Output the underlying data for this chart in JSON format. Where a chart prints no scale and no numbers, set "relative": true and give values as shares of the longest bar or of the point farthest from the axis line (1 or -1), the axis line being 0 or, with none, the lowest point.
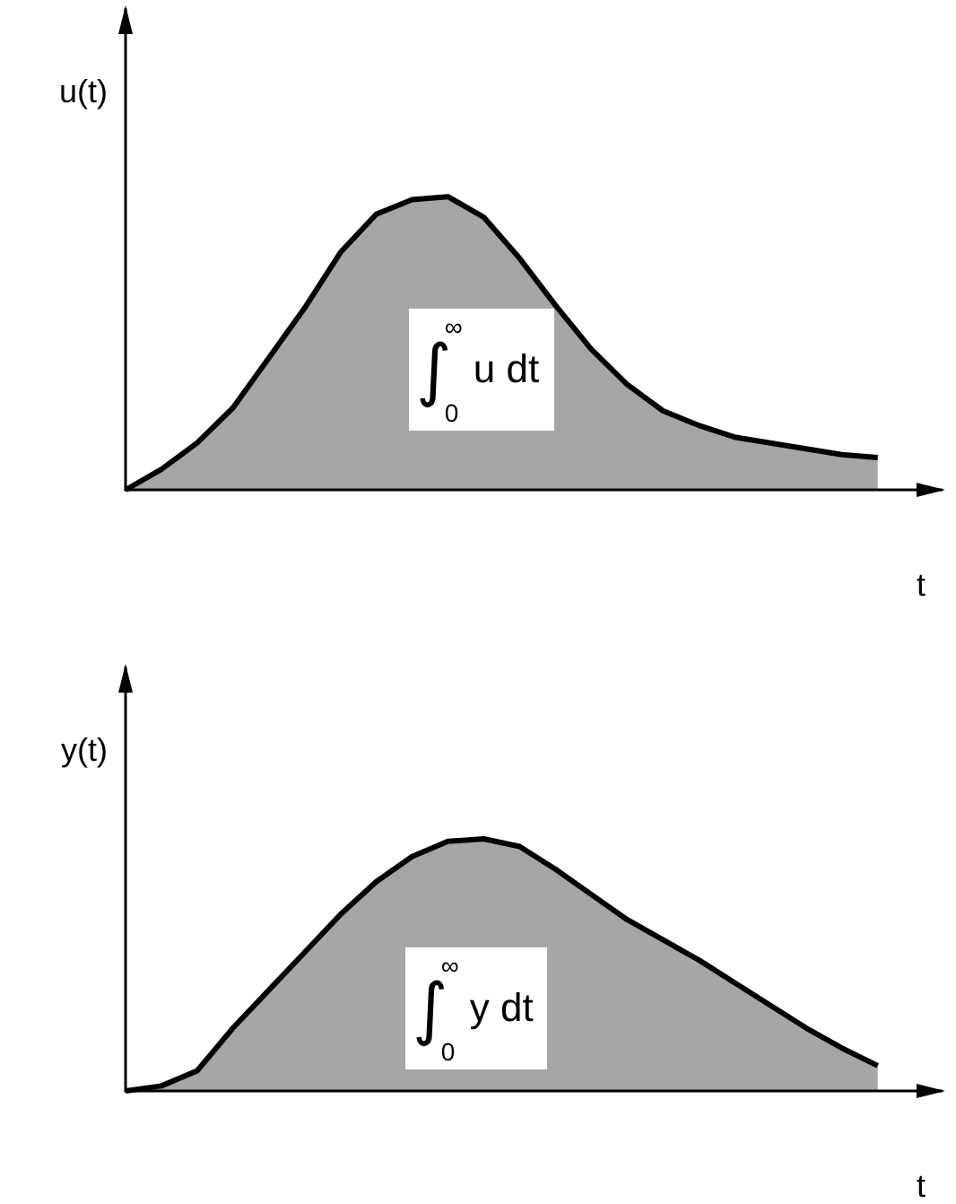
{
  "chart_data": [
    {
      "type": "area",
      "relative": true,
      "xlabel": "t",
      "ylabel": "u(t)",
      "categories": [
        null,
        null,
        null,
        null,
        null,
        null,
        null,
        null,
        null,
        null,
        null,
        null,
        null,
        null,
        null,
        null,
        null,
        null,
        null,
        null,
        null,
        null
      ],
      "series": [
        {
          "color": "#000000",
          "values": [
            0,
            0.07,
            0.16,
            0.28,
            0.45,
            0.62,
            0.81,
            0.94,
            0.99,
            1.0,
            0.93,
            0.79,
            0.63,
            0.48,
            0.36,
            0.27,
            0.22,
            0.18,
            0.16,
            0.14,
            0.12,
            0.11
          ]
        }
      ],
      "annotations": [
        "∫$_{0}$$^{∞}$ u dt"
      ],
      "grid": false,
      "tick_labels": false,
      "marker": "none",
      "line_style": "solid"
    },
    {
      "type": "area",
      "relative": true,
      "xlabel": "t",
      "ylabel": "y(t)",
      "categories": [
        null,
        null,
        null,
        null,
        null,
        null,
        null,
        null,
        null,
        null,
        null,
        null,
        null,
        null,
        null,
        null,
        null,
        null,
        null,
        null,
        null,
        null
      ],
      "series": [
        {
          "color": "#000000",
          "values": [
            0,
            0.02,
            0.08,
            0.25,
            0.4,
            0.55,
            0.7,
            0.83,
            0.93,
            0.99,
            1.0,
            0.97,
            0.88,
            0.78,
            0.68,
            0.6,
            0.52,
            0.43,
            0.34,
            0.25,
            0.17,
            0.1
          ]
        }
      ],
      "annotations": [
        "∫$_{0}$$^{∞}$ y dt"
      ],
      "grid": false,
      "tick_labels": false,
      "marker": "none",
      "line_style": "solid"
    }
  ]
}
